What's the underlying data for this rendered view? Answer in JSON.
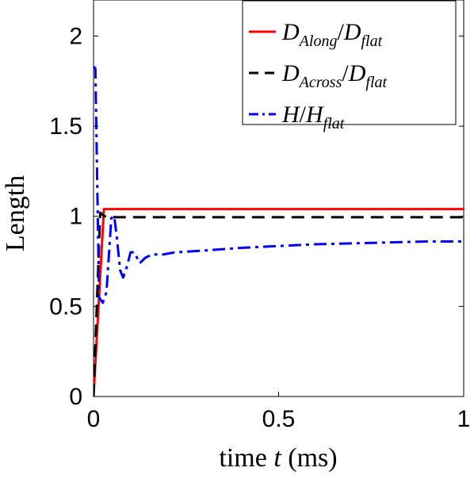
{
  "chart_data": {
    "type": "line",
    "xlabel": "time t (ms)",
    "xlabel_parts": {
      "pre": "time ",
      "var": "t",
      "post": " (ms)"
    },
    "ylabel": "Length",
    "xlim": [
      0,
      1
    ],
    "ylim": [
      0,
      2.2
    ],
    "x_ticks": [
      0,
      0.5,
      1
    ],
    "x_tick_labels": [
      "0",
      "0.5",
      "1"
    ],
    "y_ticks": [
      0,
      0.5,
      1,
      1.5,
      2
    ],
    "y_tick_labels": [
      "0",
      "0.5",
      "1",
      "1.5",
      "2"
    ],
    "grid": false,
    "legend_position": "top-right",
    "series": [
      {
        "name": "D_Along/D_flat",
        "legend": {
          "n1": "D",
          "s1": "Along",
          "n2": "D",
          "s2": "flat"
        },
        "color": "#ff0000",
        "style": "solid",
        "points": [
          [
            0,
            0
          ],
          [
            0.028,
            1.04
          ],
          [
            0.2,
            1.04
          ],
          [
            0.5,
            1.04
          ],
          [
            1.0,
            1.04
          ]
        ]
      },
      {
        "name": "D_Across/D_flat",
        "legend": {
          "n1": "D",
          "s1": "Across",
          "n2": "D",
          "s2": "flat"
        },
        "color": "#000000",
        "style": "dash",
        "points": [
          [
            0,
            0
          ],
          [
            0.018,
            1.02
          ],
          [
            0.03,
            1.0
          ],
          [
            0.06,
            0.995
          ],
          [
            0.2,
            0.995
          ],
          [
            0.5,
            0.995
          ],
          [
            1.0,
            0.995
          ]
        ]
      },
      {
        "name": "H/H_flat",
        "legend": {
          "n1": "H",
          "s1": "",
          "n2": "H",
          "s2": "flat"
        },
        "color": "#0000ff",
        "style": "dashdot",
        "points": [
          [
            0,
            1.83
          ],
          [
            0.005,
            1.82
          ],
          [
            0.015,
            0.55
          ],
          [
            0.025,
            0.52
          ],
          [
            0.035,
            0.58
          ],
          [
            0.048,
            0.99
          ],
          [
            0.056,
            1.0
          ],
          [
            0.063,
            0.88
          ],
          [
            0.072,
            0.7
          ],
          [
            0.08,
            0.66
          ],
          [
            0.09,
            0.72
          ],
          [
            0.1,
            0.8
          ],
          [
            0.11,
            0.8
          ],
          [
            0.125,
            0.74
          ],
          [
            0.14,
            0.77
          ],
          [
            0.16,
            0.79
          ],
          [
            0.18,
            0.785
          ],
          [
            0.22,
            0.8
          ],
          [
            0.3,
            0.81
          ],
          [
            0.4,
            0.825
          ],
          [
            0.5,
            0.835
          ],
          [
            0.6,
            0.845
          ],
          [
            0.7,
            0.85
          ],
          [
            0.8,
            0.855
          ],
          [
            0.9,
            0.86
          ],
          [
            1.0,
            0.86
          ]
        ]
      }
    ]
  }
}
